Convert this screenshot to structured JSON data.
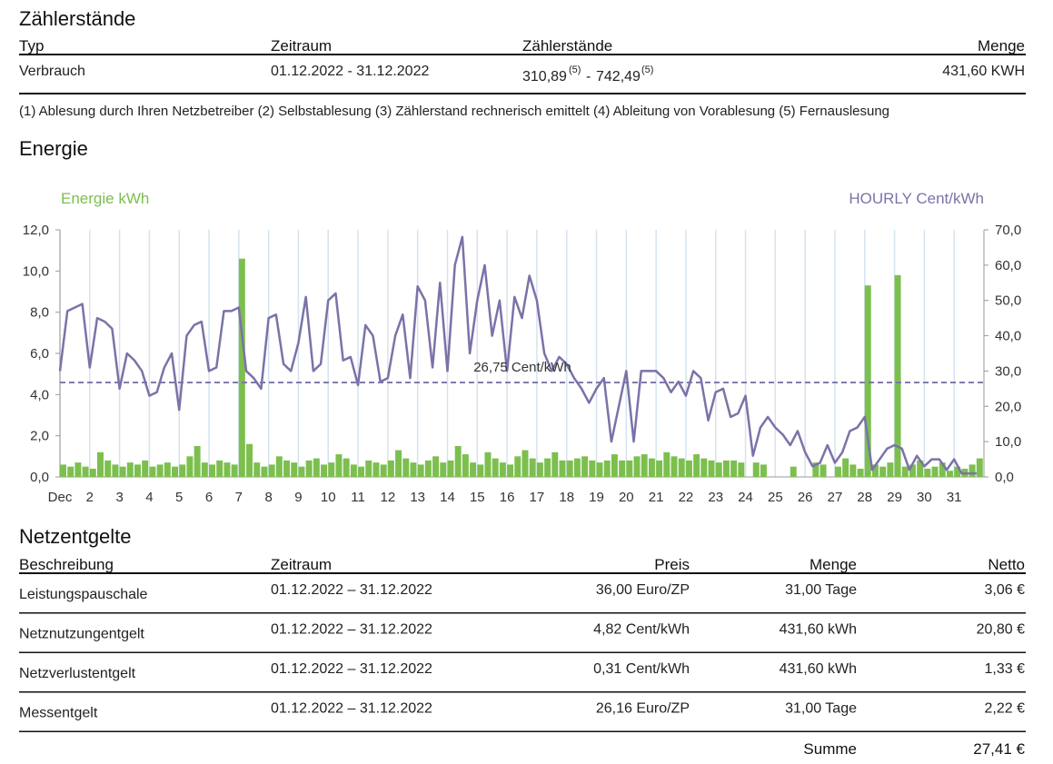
{
  "meter": {
    "title": "Zählerstände",
    "columns": [
      "Typ",
      "Zeitraum",
      "Zählerstände",
      "Menge"
    ],
    "rows": [
      {
        "type": "Verbrauch",
        "period": "01.12.2022 - 31.12.2022",
        "reading_from": "310,89",
        "note_from": "(5)",
        "separator": "-",
        "reading_to": "742,49",
        "note_to": "(5)",
        "amount": "431,60 KWH"
      }
    ],
    "legend": "(1) Ablesung durch Ihren Netzbetreiber (2) Selbstablesung (3) Zählerstand rechnerisch emittelt (4) Ableitung von Vorablesung (5) Fernauslesung"
  },
  "energy_title": "Energie",
  "chart_data": {
    "type": "combo",
    "y_label": "Energie kWh",
    "y2_label": "HOURLY Cent/kWh",
    "x": [
      1,
      1.25,
      1.5,
      1.75,
      2,
      2.25,
      2.5,
      2.75,
      3,
      3.25,
      3.5,
      3.75,
      4,
      4.25,
      4.5,
      4.75,
      5,
      5.25,
      5.5,
      5.75,
      6,
      6.25,
      6.5,
      6.75,
      7,
      7.25,
      7.5,
      7.75,
      8,
      8.25,
      8.5,
      8.75,
      9,
      9.25,
      9.5,
      9.75,
      10,
      10.25,
      10.5,
      10.75,
      11,
      11.25,
      11.5,
      11.75,
      12,
      12.25,
      12.5,
      12.75,
      13,
      13.25,
      13.5,
      13.75,
      14,
      14.25,
      14.5,
      14.75,
      15,
      15.25,
      15.5,
      15.75,
      16,
      16.25,
      16.5,
      16.75,
      17,
      17.25,
      17.5,
      17.75,
      18,
      18.25,
      18.5,
      18.75,
      19,
      19.25,
      19.5,
      19.75,
      20,
      20.25,
      20.5,
      20.75,
      21,
      21.25,
      21.5,
      21.75,
      22,
      22.25,
      22.5,
      22.75,
      23,
      23.25,
      23.5,
      23.75,
      24,
      24.25,
      24.5,
      24.75,
      25,
      25.25,
      25.5,
      25.75,
      26,
      26.25,
      26.5,
      26.75,
      27,
      27.25,
      27.5,
      27.75,
      28,
      28.25,
      28.5,
      28.75,
      29,
      29.25,
      29.5,
      29.75,
      30,
      30.25,
      30.5,
      30.75,
      31,
      31.25,
      31.5,
      31.75
    ],
    "series": [
      {
        "name": "Energie kWh",
        "type": "bar",
        "color": "#7cbf4e",
        "values": [
          0.6,
          0.5,
          0.7,
          0.5,
          0.4,
          1.2,
          0.8,
          0.6,
          0.5,
          0.7,
          0.6,
          0.8,
          0.5,
          0.6,
          0.7,
          0.5,
          0.6,
          1.0,
          1.5,
          0.7,
          0.6,
          0.8,
          0.7,
          0.6,
          10.6,
          1.6,
          0.7,
          0.5,
          0.6,
          1.0,
          0.8,
          0.7,
          0.5,
          0.8,
          0.9,
          0.6,
          0.7,
          1.1,
          0.9,
          0.6,
          0.5,
          0.8,
          0.7,
          0.6,
          0.8,
          1.3,
          0.9,
          0.7,
          0.6,
          0.8,
          1.0,
          0.7,
          0.8,
          1.5,
          1.1,
          0.7,
          0.6,
          1.2,
          0.9,
          0.7,
          0.6,
          1.0,
          1.3,
          0.9,
          0.7,
          0.9,
          1.2,
          0.8,
          0.8,
          0.9,
          1.0,
          0.8,
          0.7,
          0.8,
          1.1,
          0.8,
          0.8,
          1.0,
          1.1,
          0.9,
          0.8,
          1.2,
          1.0,
          0.9,
          0.8,
          1.1,
          0.9,
          0.8,
          0.7,
          0.8,
          0.8,
          0.7,
          0.0,
          0.7,
          0.6,
          0.0,
          0.0,
          0.0,
          0.5,
          0.0,
          0.0,
          0.7,
          0.6,
          0.0,
          0.5,
          0.9,
          0.6,
          0.4,
          9.3,
          0.6,
          0.5,
          0.7,
          9.8,
          0.5,
          0.6,
          0.8,
          0.4,
          0.5,
          0.7,
          0.3,
          0.5,
          0.4,
          0.6,
          0.9
        ]
      },
      {
        "name": "HOURLY Cent/kWh",
        "type": "line",
        "axis": "y2",
        "color": "#7b72a8",
        "values": [
          30,
          47,
          48,
          49,
          31,
          45,
          44,
          42,
          25,
          35,
          33,
          30,
          23,
          24,
          31,
          35,
          19,
          40,
          43,
          44,
          30,
          31,
          47,
          47,
          48,
          30,
          28,
          25,
          45,
          46,
          32,
          30,
          38,
          51,
          30,
          32,
          50,
          52,
          33,
          34,
          26,
          43,
          40,
          27,
          28,
          40,
          46,
          28,
          54,
          50,
          31,
          55,
          30,
          60,
          68,
          35,
          50,
          60,
          40,
          50,
          30,
          51,
          45,
          57,
          50,
          35,
          30,
          34,
          32,
          28,
          25,
          21,
          25,
          28,
          10,
          20,
          30,
          10,
          30,
          30,
          30,
          28,
          24,
          27,
          23,
          30,
          28,
          16,
          24,
          25,
          17,
          18,
          23,
          6,
          14,
          17,
          14,
          12,
          9,
          13,
          7,
          3,
          4,
          9,
          4,
          7,
          13,
          14,
          17,
          2,
          5,
          8,
          9,
          8,
          2,
          6,
          3,
          5,
          5,
          2,
          5,
          1,
          1,
          1
        ]
      }
    ],
    "average": {
      "value": 26.75,
      "label": "26,75 Cent/kWh"
    },
    "xlim": [
      1,
      32
    ],
    "xticks": [
      {
        "value": 1,
        "label": "Dec"
      },
      2,
      3,
      4,
      5,
      6,
      7,
      8,
      9,
      10,
      11,
      12,
      13,
      14,
      15,
      16,
      17,
      18,
      19,
      20,
      21,
      22,
      23,
      24,
      25,
      26,
      27,
      28,
      29,
      30,
      31
    ],
    "ylim": [
      0,
      12
    ],
    "yticks": [
      {
        "value": 0,
        "label": "0,0"
      },
      {
        "value": 2,
        "label": "2,0"
      },
      {
        "value": 4,
        "label": "4,0"
      },
      {
        "value": 6,
        "label": "6,0"
      },
      {
        "value": 8,
        "label": "8,0"
      },
      {
        "value": 10,
        "label": "10,0"
      },
      {
        "value": 12,
        "label": "12,0"
      }
    ],
    "y2lim": [
      0,
      70
    ],
    "y2ticks": [
      {
        "value": 0,
        "label": "0,0"
      },
      {
        "value": 10,
        "label": "10,0"
      },
      {
        "value": 20,
        "label": "20,0"
      },
      {
        "value": 30,
        "label": "30,0"
      },
      {
        "value": 40,
        "label": "40,0"
      },
      {
        "value": 50,
        "label": "50,0"
      },
      {
        "value": 60,
        "label": "60,0"
      },
      {
        "value": 70,
        "label": "70,0"
      }
    ],
    "grid": true
  },
  "fees": {
    "title": "Netzentgelte",
    "columns": [
      "Beschreibung",
      "Zeitraum",
      "Preis",
      "Menge",
      "Netto"
    ],
    "rows": [
      [
        "Leistungspauschale",
        "01.12.2022 – 31.12.2022",
        "36,00 Euro/ZP",
        "31,00 Tage",
        "3,06 €"
      ],
      [
        "Netznutzungentgelt",
        "01.12.2022 – 31.12.2022",
        "4,82 Cent/kWh",
        "431,60 kWh",
        "20,80 €"
      ],
      [
        "Netzverlustentgelt",
        "01.12.2022 – 31.12.2022",
        "0,31 Cent/kWh",
        "431,60 kWh",
        "1,33 €"
      ],
      [
        "Messentgelt",
        "01.12.2022 – 31.12.2022",
        "26,16 Euro/ZP",
        "31,00 Tage",
        "2,22 €"
      ]
    ],
    "total_label": "Summe",
    "total": "27,41 €"
  }
}
